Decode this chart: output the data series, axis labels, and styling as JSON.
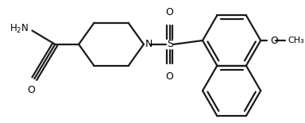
{
  "background_color": "#ffffff",
  "bond_color": "#1a1a1a",
  "text_color": "#000000",
  "line_width": 1.6,
  "figsize": [
    3.84,
    1.55
  ],
  "dpi": 100,
  "xlim": [
    0,
    384
  ],
  "ylim": [
    0,
    155
  ]
}
